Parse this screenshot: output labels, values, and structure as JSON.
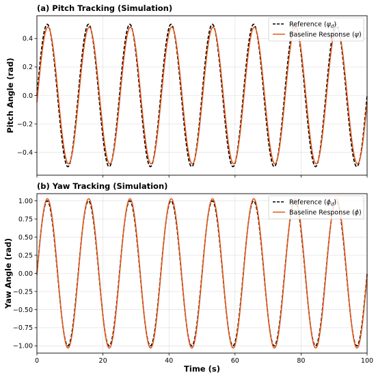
{
  "chart_data": [
    {
      "type": "line",
      "title": "(a) Pitch Tracking (Simulation)",
      "xlabel": "",
      "ylabel": "Pitch Angle (rad)",
      "xlim": [
        0,
        100
      ],
      "ylim": [
        -0.56,
        0.56
      ],
      "xticks": [
        0,
        20,
        40,
        60,
        80,
        100
      ],
      "xtick_labels": [],
      "yticks": [
        -0.4,
        -0.2,
        0.0,
        0.2,
        0.4
      ],
      "ytick_labels": [
        "−0.4",
        "−0.2",
        "0.0",
        "0.2",
        "0.4"
      ],
      "grid": true,
      "legend_position": "top-right",
      "series": [
        {
          "name": "Reference (ψd)",
          "legend_main": "Reference (",
          "legend_sym": "ψ",
          "legend_sub": "d",
          "legend_tail": ")",
          "color": "#000000",
          "style": "dashed",
          "model": {
            "amplitude": 0.5,
            "period": 12.5,
            "phase_delay": 0.0
          },
          "x": [
            0,
            3.125,
            6.25,
            9.375,
            12.5,
            15.625,
            18.75,
            21.875,
            25,
            28.125,
            31.25,
            34.375,
            37.5,
            40.625,
            43.75,
            46.875,
            50,
            53.125,
            56.25,
            59.375,
            62.5,
            65.625,
            68.75,
            71.875,
            75,
            78.125,
            81.25,
            84.375,
            87.5,
            90.625,
            93.75,
            96.875,
            100
          ],
          "y": [
            0,
            0.5,
            0,
            -0.5,
            0,
            0.5,
            0,
            -0.5,
            0,
            0.5,
            0,
            -0.5,
            0,
            0.5,
            0,
            -0.5,
            0,
            0.5,
            0,
            -0.5,
            0,
            0.5,
            0,
            -0.5,
            0,
            0.5,
            0,
            -0.5,
            0,
            0.5,
            0,
            -0.5,
            0
          ]
        },
        {
          "name": "Baseline Response (ψ)",
          "legend_main": "Baseline Response (",
          "legend_sym": "ψ",
          "legend_sub": "",
          "legend_tail": ")",
          "color": "#e2581c",
          "style": "solid",
          "model": {
            "amplitude": 0.48,
            "period": 12.5,
            "phase_delay": 0.2
          },
          "x": [
            0,
            3.3,
            6.45,
            9.6,
            12.7,
            15.8,
            18.95,
            22.1,
            25.2,
            28.3,
            31.45,
            34.6,
            37.7,
            40.8,
            43.95,
            47.1,
            50.2,
            53.3,
            56.45,
            59.6,
            62.7,
            65.8,
            68.95,
            72.1,
            75.2,
            78.3,
            81.45,
            84.6,
            87.7,
            90.8,
            93.95,
            97.1,
            100
          ],
          "y": [
            0,
            0.48,
            0,
            -0.48,
            0,
            0.48,
            0,
            -0.48,
            0,
            0.48,
            0,
            -0.48,
            0,
            0.48,
            0,
            -0.48,
            0,
            0.48,
            0,
            -0.48,
            0,
            0.48,
            0,
            -0.48,
            0,
            0.48,
            0,
            -0.48,
            0,
            0.48,
            0,
            -0.48,
            -0.14
          ]
        }
      ]
    },
    {
      "type": "line",
      "title": "(b) Yaw Tracking (Simulation)",
      "xlabel": "Time (s)",
      "ylabel": "Yaw Angle (rad)",
      "xlim": [
        0,
        100
      ],
      "ylim": [
        -1.1,
        1.1
      ],
      "xticks": [
        0,
        20,
        40,
        60,
        80,
        100
      ],
      "xtick_labels": [
        "0",
        "20",
        "40",
        "60",
        "80",
        "100"
      ],
      "yticks": [
        -1.0,
        -0.75,
        -0.5,
        -0.25,
        0.0,
        0.25,
        0.5,
        0.75,
        1.0
      ],
      "ytick_labels": [
        "−1.00",
        "−0.75",
        "−0.50",
        "−0.25",
        "0.00",
        "0.25",
        "0.50",
        "0.75",
        "1.00"
      ],
      "grid": true,
      "legend_position": "top-right",
      "series": [
        {
          "name": "Reference (ϕd)",
          "legend_main": "Reference (",
          "legend_sym": "ϕ",
          "legend_sub": "d",
          "legend_tail": ")",
          "color": "#000000",
          "style": "dashed",
          "model": {
            "amplitude": 1.0,
            "period": 12.5,
            "phase_delay": 0.0
          },
          "x": [
            0,
            3.125,
            6.25,
            9.375,
            12.5,
            15.625,
            18.75,
            21.875,
            25,
            28.125,
            31.25,
            34.375,
            37.5,
            40.625,
            43.75,
            46.875,
            50,
            53.125,
            56.25,
            59.375,
            62.5,
            65.625,
            68.75,
            71.875,
            75,
            78.125,
            81.25,
            84.375,
            87.5,
            90.625,
            93.75,
            96.875,
            100
          ],
          "y": [
            0,
            1,
            0,
            -1,
            0,
            1,
            0,
            -1,
            0,
            1,
            0,
            -1,
            0,
            1,
            0,
            -1,
            0,
            1,
            0,
            -1,
            0,
            1,
            0,
            -1,
            0,
            1,
            0,
            -1,
            0,
            1,
            0,
            -1,
            0
          ]
        },
        {
          "name": "Baseline Response (ϕ)",
          "legend_main": "Baseline Response (",
          "legend_sym": "ϕ",
          "legend_sub": "",
          "legend_tail": ")",
          "color": "#e2581c",
          "style": "solid",
          "model": {
            "amplitude": 1.03,
            "period": 12.5,
            "phase_delay": 0.05
          },
          "x": [
            0,
            3.2,
            6.3,
            9.45,
            12.55,
            15.7,
            18.8,
            21.95,
            25.05,
            28.2,
            31.3,
            34.45,
            37.55,
            40.7,
            43.8,
            46.95,
            50.05,
            53.2,
            56.3,
            59.45,
            62.55,
            65.7,
            68.8,
            71.95,
            75.05,
            78.2,
            81.3,
            84.45,
            87.55,
            90.7,
            93.8,
            96.95,
            100
          ],
          "y": [
            0,
            1.03,
            0,
            -1.03,
            0,
            1.03,
            0,
            -1.03,
            0,
            1.03,
            0,
            -1.03,
            0,
            1.03,
            0,
            -1.03,
            0,
            1.03,
            0,
            -1.03,
            0,
            1.03,
            0,
            -1.03,
            0,
            1.03,
            0,
            -1.03,
            0,
            1.03,
            0,
            -1.03,
            -0.25
          ]
        }
      ]
    }
  ]
}
